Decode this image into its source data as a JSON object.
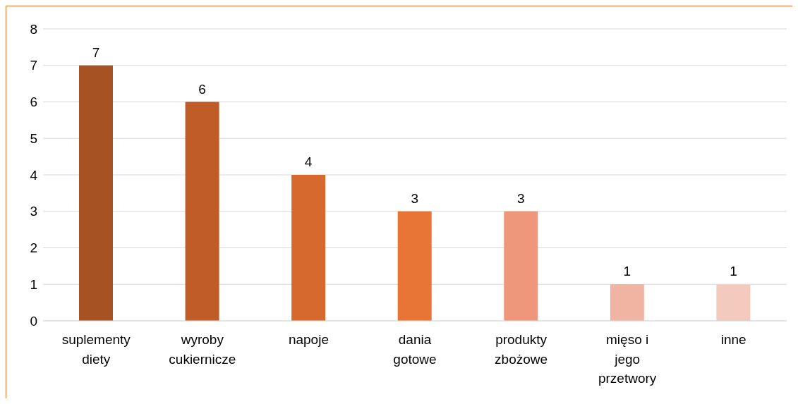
{
  "chart_data": {
    "type": "bar",
    "categories": [
      "suplementy diety",
      "wyroby cukiernicze",
      "napoje",
      "dania gotowe",
      "produkty zbożowe",
      "mięso i jego przetwory",
      "inne"
    ],
    "values": [
      7,
      6,
      4,
      3,
      3,
      1,
      1
    ],
    "colors": [
      "#a65223",
      "#c05c28",
      "#d5692e",
      "#e87435",
      "#ee977a",
      "#f1b4a2",
      "#f4cabf"
    ],
    "ylim": [
      0,
      8
    ],
    "yticks": [
      0,
      1,
      2,
      3,
      4,
      5,
      6,
      7,
      8
    ],
    "grid": "y",
    "data_labels": true
  }
}
